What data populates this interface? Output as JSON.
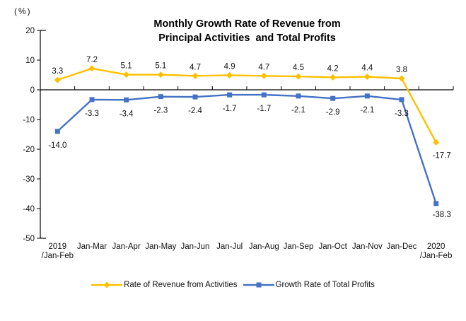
{
  "chart_data": {
    "type": "line",
    "title_lines": [
      "Monthly Growth Rate of Revenue from",
      "Principal Activities  and Total Profits"
    ],
    "unit_label": "(%)",
    "categories": [
      [
        "2019",
        "/Jan-Feb"
      ],
      [
        "Jan-Mar"
      ],
      [
        "Jan-Apr"
      ],
      [
        "Jan-May"
      ],
      [
        "Jan-Jun"
      ],
      [
        "Jan-Jul"
      ],
      [
        "Jan-Aug"
      ],
      [
        "Jan-Sep"
      ],
      [
        "Jan-Oct"
      ],
      [
        "Jan-Nov"
      ],
      [
        "Jan-Dec"
      ],
      [
        "2020",
        "/Jan-Feb"
      ]
    ],
    "y_axis": {
      "min": -50,
      "max": 20,
      "step": 10,
      "tick_labels": [
        "20",
        "10",
        "0",
        "-10",
        "-20",
        "-30",
        "-40",
        "-50"
      ]
    },
    "grid": false,
    "legend_position": "bottom",
    "axis_color": "#000000",
    "series": [
      {
        "name": "Rate of Revenue from Activities",
        "color": "#FFC000",
        "marker": "diamond",
        "label_position": "above",
        "values": [
          3.3,
          7.2,
          5.1,
          5.1,
          4.7,
          4.9,
          4.7,
          4.5,
          4.2,
          4.4,
          3.8,
          -17.7
        ],
        "labels": [
          "3.3",
          "7.2",
          "5.1",
          "5.1",
          "4.7",
          "4.9",
          "4.7",
          "4.5",
          "4.2",
          "4.4",
          "3.8",
          "-17.7"
        ]
      },
      {
        "name": "Growth Rate of Total Profits",
        "color": "#4472C4",
        "marker": "square",
        "label_position": "below",
        "values": [
          -14.0,
          -3.3,
          -3.4,
          -2.3,
          -2.4,
          -1.7,
          -1.7,
          -2.1,
          -2.9,
          -2.1,
          -3.3,
          -38.3
        ],
        "labels": [
          "-14.0",
          "-3.3",
          "-3.4",
          "-2.3",
          "-2.4",
          "-1.7",
          "-1.7",
          "-2.1",
          "-2.9",
          "-2.1",
          "-3.3",
          "-38.3"
        ]
      }
    ]
  }
}
